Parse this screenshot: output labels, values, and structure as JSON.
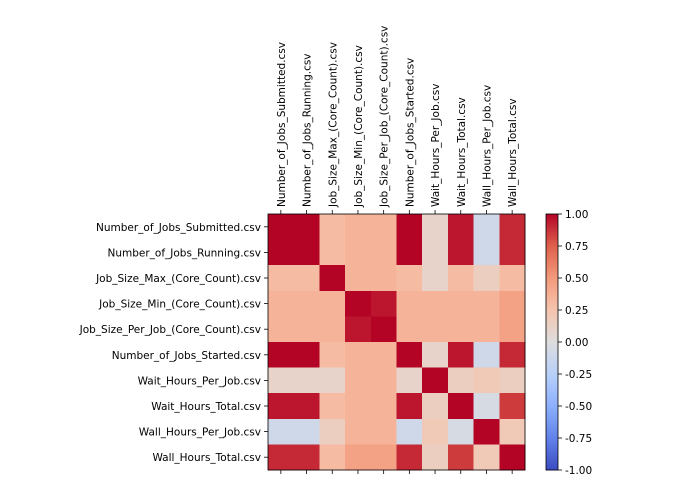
{
  "chart_data": {
    "type": "heatmap",
    "labels": [
      "Number_of_Jobs_Submitted.csv",
      "Number_of_Jobs_Running.csv",
      "Job_Size_Max_(Core_Count).csv",
      "Job_Size_Min_(Core_Count).csv",
      "Job_Size_Per_Job_(Core_Count).csv",
      "Number_of_Jobs_Started.csv",
      "Wait_Hours_Per_Job.csv",
      "Wait_Hours_Total.csv",
      "Wall_Hours_Per_Job.csv",
      "Wall_Hours_Total.csv"
    ],
    "values": [
      [
        1.0,
        1.0,
        0.3,
        0.35,
        0.35,
        1.0,
        0.1,
        0.95,
        -0.1,
        0.9
      ],
      [
        1.0,
        1.0,
        0.3,
        0.35,
        0.35,
        1.0,
        0.1,
        0.95,
        -0.1,
        0.9
      ],
      [
        0.3,
        0.3,
        1.0,
        0.35,
        0.35,
        0.3,
        0.1,
        0.3,
        0.15,
        0.3
      ],
      [
        0.35,
        0.35,
        0.35,
        1.0,
        0.95,
        0.35,
        0.35,
        0.35,
        0.35,
        0.45
      ],
      [
        0.35,
        0.35,
        0.35,
        0.95,
        1.0,
        0.35,
        0.35,
        0.35,
        0.35,
        0.45
      ],
      [
        1.0,
        1.0,
        0.3,
        0.35,
        0.35,
        1.0,
        0.1,
        0.95,
        -0.1,
        0.9
      ],
      [
        0.1,
        0.1,
        0.1,
        0.35,
        0.35,
        0.1,
        1.0,
        0.15,
        0.2,
        0.15
      ],
      [
        0.95,
        0.95,
        0.3,
        0.35,
        0.35,
        0.95,
        0.15,
        1.0,
        -0.05,
        0.85
      ],
      [
        -0.1,
        -0.1,
        0.15,
        0.35,
        0.35,
        -0.1,
        0.2,
        -0.05,
        1.0,
        0.2
      ],
      [
        0.9,
        0.9,
        0.3,
        0.45,
        0.45,
        0.9,
        0.15,
        0.85,
        0.2,
        1.0
      ]
    ],
    "colorbar": {
      "min": -1.0,
      "max": 1.0,
      "ticks": [
        "1.00",
        "0.75",
        "0.50",
        "0.25",
        "0.00",
        "-0.25",
        "-0.50",
        "-0.75",
        "-1.00"
      ],
      "tick_values": [
        1.0,
        0.75,
        0.5,
        0.25,
        0.0,
        -0.25,
        -0.5,
        -0.75,
        -1.0
      ],
      "colormap": "coolwarm"
    },
    "title": "",
    "xlabel": "",
    "ylabel": ""
  }
}
